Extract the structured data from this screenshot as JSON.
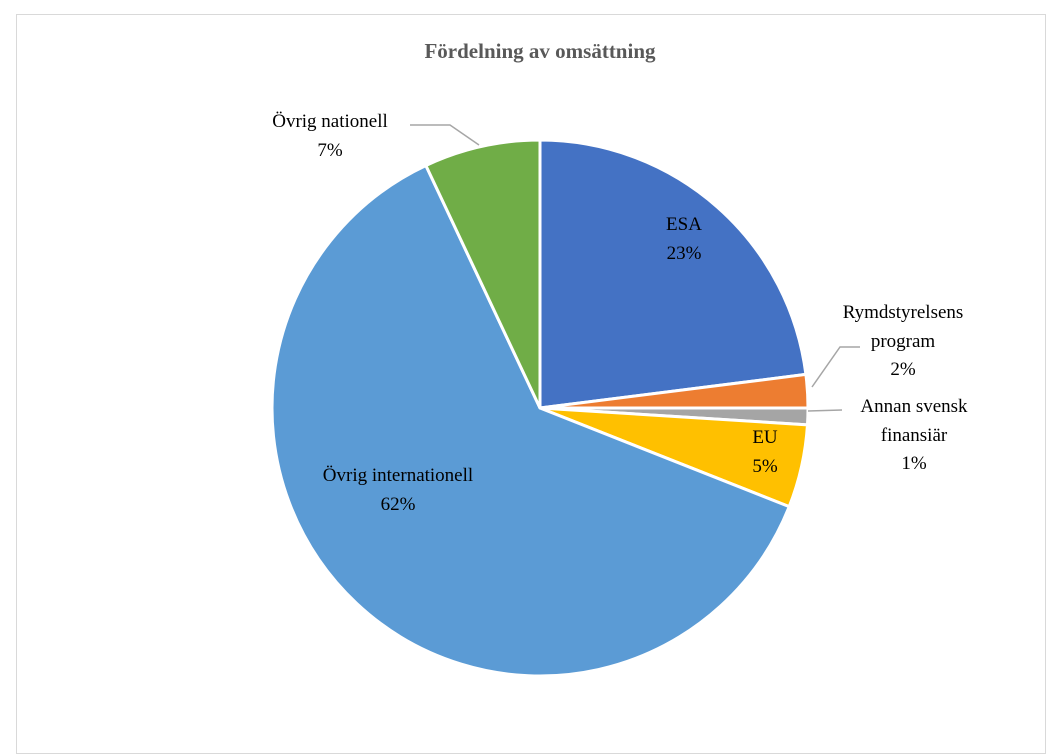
{
  "chart_data": {
    "type": "pie",
    "title": "Fördelning av omsättning",
    "categories": [
      "ESA",
      "Rymdstyrelsens program",
      "Annan svensk finansiär",
      "EU",
      "Övrig internationell",
      "Övrig nationell"
    ],
    "values": [
      23,
      2,
      1,
      5,
      62,
      7
    ],
    "data_labels": [
      "23%",
      "2%",
      "1%",
      "5%",
      "62%",
      "7%"
    ],
    "colors": [
      "#4472C4",
      "#ED7D31",
      "#A5A5A5",
      "#FFC000",
      "#5B9BD5",
      "#70AD47"
    ],
    "start_angle": "12 o'clock",
    "direction": "clockwise",
    "legend": "none"
  }
}
